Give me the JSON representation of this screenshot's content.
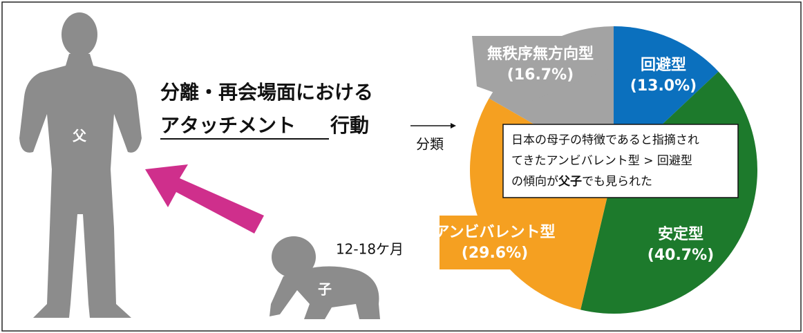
{
  "title": {
    "line1": "分離・再会場面における",
    "line2_underlined": "アタッチメント",
    "line2_rest": "行動"
  },
  "arrow_label": "分類",
  "father_label": "父",
  "child_label": "子",
  "age_label": "12-18ケ月",
  "note": {
    "lines": [
      "日本の母子の特徴であると指摘され",
      "てきたアンビバレント型 > 回避型"
    ],
    "last_line": [
      "の傾向が",
      "父子",
      "でも見られた"
    ]
  },
  "chart_data": {
    "type": "pie",
    "categories": [
      "回避型",
      "安定型",
      "アンビバレント型",
      "無秩序無方向型"
    ],
    "values": [
      13.0,
      40.7,
      29.6,
      16.7
    ],
    "value_labels": [
      "(13.0%)",
      "(40.7%)",
      "(29.6%)",
      "(16.7%)"
    ],
    "colors": [
      "#0b70be",
      "#1d7a2c",
      "#f5a021",
      "#a3a3a3"
    ]
  }
}
